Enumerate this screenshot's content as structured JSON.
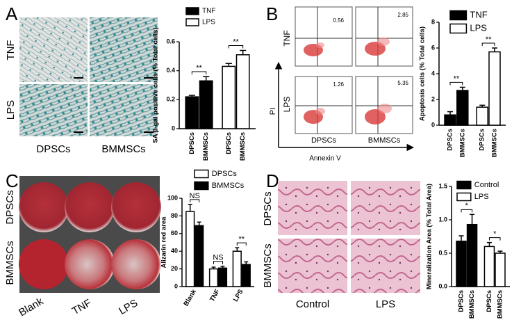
{
  "panels": {
    "A": {
      "label": "A",
      "rows": [
        "TNF",
        "LPS"
      ],
      "cols": [
        "DPSCs",
        "BMMSCs"
      ]
    },
    "B": {
      "label": "B",
      "rows": [
        "TNF",
        "LPS"
      ],
      "cols": [
        "DPSCs",
        "BMMSCs"
      ],
      "percentages": [
        [
          0.56,
          2.85
        ],
        [
          1.26,
          5.35
        ]
      ],
      "y_axis": "PI",
      "x_axis": "Annexin V"
    },
    "C": {
      "label": "C",
      "rows": [
        "DPSCs",
        "BMMSCs"
      ],
      "cols": [
        "Blank",
        "TNF",
        "LPS"
      ]
    },
    "D": {
      "label": "D",
      "rows": [
        "DPSCs",
        "BMMSCs"
      ],
      "cols": [
        "Control",
        "LPS"
      ]
    }
  },
  "chart_data": [
    {
      "type": "bar",
      "y_label": "SA β-gal positive cells (% Total cells)",
      "categories": [
        "DPSCs",
        "BMMSCs",
        "DPSCs",
        "BMMSCs"
      ],
      "series": [
        {
          "name": "TNF",
          "color": "#000000",
          "values": [
            0.22,
            0.33,
            null,
            null
          ],
          "errors": [
            0.01,
            0.03,
            null,
            null
          ]
        },
        {
          "name": "LPS",
          "color": "#ffffff",
          "values": [
            null,
            null,
            0.43,
            0.51
          ],
          "errors": [
            null,
            null,
            0.02,
            0.03
          ]
        }
      ],
      "annotations": [
        "**",
        "**"
      ],
      "ylim": [
        0,
        0.6
      ],
      "yticks": [
        0,
        0.2,
        0.4,
        0.6
      ]
    },
    {
      "type": "bar",
      "y_label": "Apoptosis cells (% Total cells)",
      "categories": [
        "DPSCs",
        "BMMSCs",
        "DPSCs",
        "BMMSCs"
      ],
      "series": [
        {
          "name": "TNF",
          "color": "#000000",
          "values": [
            0.8,
            2.7,
            null,
            null
          ],
          "errors": [
            0.25,
            0.25,
            null,
            null
          ]
        },
        {
          "name": "LPS",
          "color": "#ffffff",
          "values": [
            null,
            null,
            1.4,
            5.7
          ],
          "errors": [
            null,
            null,
            0.15,
            0.3
          ]
        }
      ],
      "annotations": [
        "**",
        "**"
      ],
      "ylim": [
        0,
        8
      ],
      "yticks": [
        0,
        2,
        4,
        6,
        8
      ]
    },
    {
      "type": "bar",
      "y_label": "Alizarin red area",
      "categories": [
        "Blank",
        "TNF",
        "LPS"
      ],
      "series": [
        {
          "name": "DPSCs",
          "color": "#ffffff",
          "values": [
            85,
            20,
            40
          ],
          "errors": [
            8,
            2,
            4
          ]
        },
        {
          "name": "BMMSCs",
          "color": "#000000",
          "values": [
            69,
            21,
            25
          ],
          "errors": [
            4,
            2,
            3
          ]
        }
      ],
      "annotations": [
        "NS",
        "NS",
        "**"
      ],
      "ylim": [
        0,
        100
      ],
      "yticks": [
        0,
        20,
        40,
        60,
        80,
        100
      ]
    },
    {
      "type": "bar",
      "y_label": "Mineralization Area (% Total Area)",
      "categories": [
        "DPSCs",
        "BMMSCs",
        "DPSCs",
        "BMMSCs"
      ],
      "series": [
        {
          "name": "Control",
          "color": "#000000",
          "values": [
            0.68,
            0.93,
            null,
            null
          ],
          "errors": [
            0.08,
            0.15,
            null,
            null
          ]
        },
        {
          "name": "LPS",
          "color": "#ffffff",
          "values": [
            null,
            null,
            0.6,
            0.5
          ],
          "errors": [
            null,
            null,
            0.06,
            0.03
          ]
        }
      ],
      "annotations": [
        "*",
        "*"
      ],
      "ylim": [
        0,
        1.5
      ],
      "yticks": [
        {
          "value": 0,
          "label": "0.0"
        },
        0.5,
        {
          "value": 1,
          "label": "1.0"
        },
        1.5
      ]
    }
  ]
}
